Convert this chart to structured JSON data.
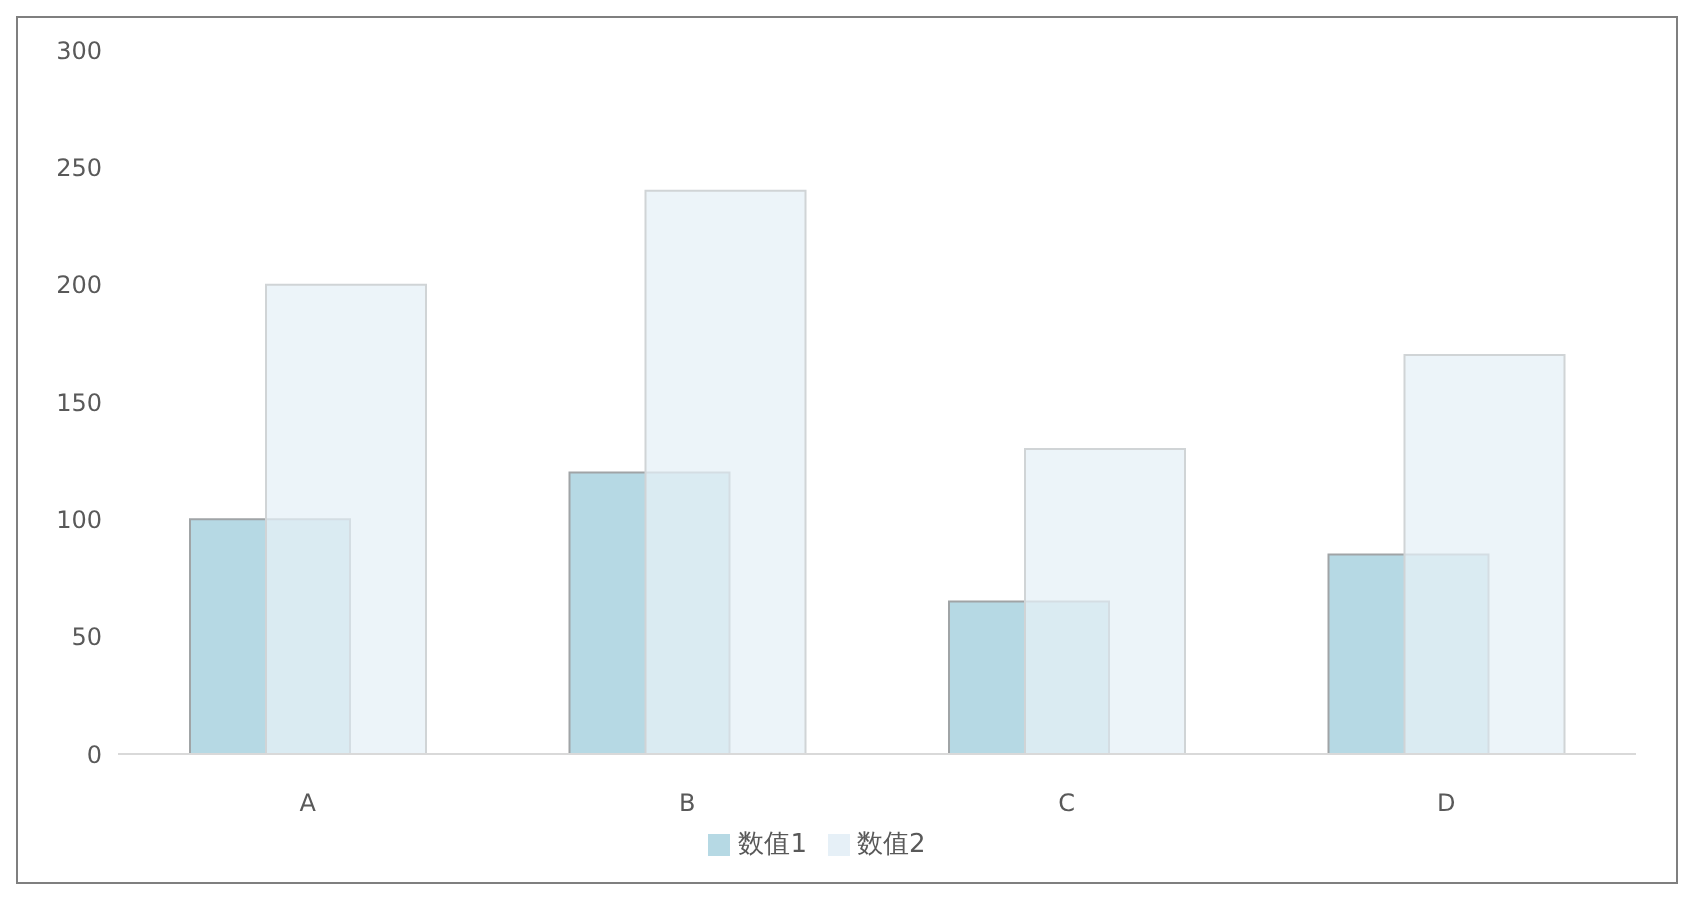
{
  "chart_data": {
    "type": "bar",
    "categories": [
      "A",
      "B",
      "C",
      "D"
    ],
    "series": [
      {
        "name": "数值1",
        "color": "#b6d9e4",
        "values": [
          100,
          120,
          65,
          85
        ]
      },
      {
        "name": "数值2",
        "color": "#e6f0f7",
        "values": [
          200,
          240,
          130,
          170
        ]
      }
    ],
    "ylim": [
      0,
      300
    ],
    "yticks": [
      0,
      50,
      100,
      150,
      200,
      250,
      300
    ],
    "grid": false,
    "legend": "bottom"
  }
}
